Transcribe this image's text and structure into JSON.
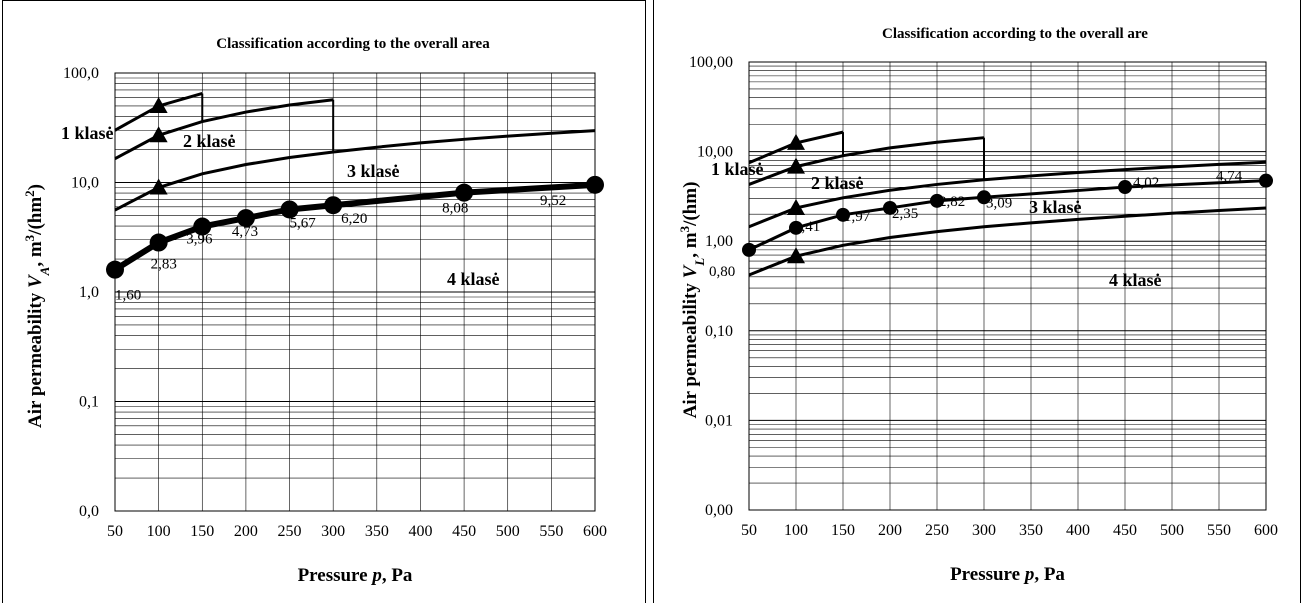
{
  "chart_data": [
    {
      "type": "line",
      "title": "Classification according to the overall area",
      "xlabel": "Pressure p, Pa",
      "xlabel_parts": [
        "Pressure ",
        "p",
        ", Pa"
      ],
      "ylabel": "Air permeability VA, m3/(hm2)",
      "ylabel_parts": {
        "prefix": "Air permeability ",
        "var": "V",
        "sub": "A",
        "mid": ", m",
        "sup1": "3",
        "mid2": "/(hm",
        "sup2": "2",
        "end": ")"
      },
      "y_scale": "log",
      "xlim": [
        50,
        600
      ],
      "ylim": [
        0.01,
        100
      ],
      "x_ticks": [
        50,
        100,
        150,
        200,
        250,
        300,
        350,
        400,
        450,
        500,
        550,
        600
      ],
      "x_tick_labels": [
        "50",
        "100",
        "150",
        "200",
        "250",
        "300",
        "350",
        "400",
        "450",
        "500",
        "550",
        "600"
      ],
      "y_ticks": [
        0.01,
        0.1,
        1,
        10,
        100
      ],
      "y_tick_labels": [
        "0,0",
        "0,1",
        "1,0",
        "10,0",
        "100,0"
      ],
      "grid": true,
      "class_labels": [
        "1 klasė",
        "2 klasė",
        "3 klasė",
        "4 klasė"
      ],
      "class_boundaries": [
        {
          "x": [
            50,
            100,
            150
          ],
          "y": [
            30.0,
            50.0,
            65.0
          ],
          "marker_x": [
            100
          ],
          "drop_at_x": 150
        },
        {
          "x": [
            50,
            100,
            150,
            200,
            250,
            300
          ],
          "y": [
            16.5,
            27.0,
            36.0,
            44.0,
            51.0,
            57.0
          ],
          "marker_x": [
            100
          ],
          "drop_at_x": 300
        },
        {
          "x": [
            50,
            100,
            150,
            200,
            250,
            300,
            350,
            400,
            450,
            500,
            550,
            600
          ],
          "y": [
            5.6,
            9.0,
            12.0,
            14.6,
            16.9,
            19.0,
            21.0,
            23.0,
            24.8,
            26.5,
            28.2,
            29.8
          ],
          "marker_x": [
            100
          ]
        }
      ],
      "series": [
        {
          "x": [
            50,
            100,
            150,
            200,
            250,
            300,
            450,
            600
          ],
          "values": [
            1.6,
            2.83,
            3.96,
            4.73,
            5.67,
            6.2,
            8.08,
            9.52
          ],
          "labels": [
            "1,60",
            "2,83",
            "3,96",
            "4,73",
            "5,67",
            "6,20",
            "8,08",
            "9,52"
          ]
        }
      ]
    },
    {
      "type": "line",
      "title": "Classification according to the overall are",
      "xlabel": "Pressure p, Pa",
      "xlabel_parts": [
        "Pressure ",
        "p",
        ", Pa"
      ],
      "ylabel": "Air permeability VL, m3/(hm)",
      "ylabel_parts": {
        "prefix": "Air permeability ",
        "var": "V",
        "sub": "L",
        "mid": ", m",
        "sup1": "3",
        "mid2": "/(hm)",
        "sup2": "",
        "end": ""
      },
      "y_scale": "log",
      "xlim": [
        50,
        600
      ],
      "ylim": [
        0.001,
        100
      ],
      "x_ticks": [
        50,
        100,
        150,
        200,
        250,
        300,
        350,
        400,
        450,
        500,
        550,
        600
      ],
      "x_tick_labels": [
        "50",
        "100",
        "150",
        "200",
        "250",
        "300",
        "350",
        "400",
        "450",
        "500",
        "550",
        "600"
      ],
      "y_ticks": [
        0.001,
        0.01,
        0.1,
        1,
        10,
        100
      ],
      "y_tick_labels": [
        "0,00",
        "0,01",
        "0,10",
        "1,00",
        "10,00",
        "100,00"
      ],
      "grid": true,
      "class_labels": [
        "1 klasė",
        "2 klasė",
        "3 klasė",
        "4 klasė"
      ],
      "class_boundaries": [
        {
          "x": [
            50,
            100,
            150
          ],
          "y": [
            7.5,
            12.5,
            16.5
          ],
          "marker_x": [
            100
          ],
          "drop_at_x": 150
        },
        {
          "x": [
            50,
            100,
            150,
            200,
            250,
            300
          ],
          "y": [
            4.3,
            6.8,
            9.0,
            11.0,
            12.7,
            14.3
          ],
          "marker_x": [
            100
          ],
          "drop_at_x": 300
        },
        {
          "x": [
            50,
            100,
            150,
            200,
            250,
            300,
            350,
            400,
            450,
            500,
            550,
            600
          ],
          "y": [
            1.45,
            2.35,
            3.05,
            3.7,
            4.3,
            4.85,
            5.35,
            5.85,
            6.3,
            6.75,
            7.2,
            7.6
          ],
          "marker_x": [
            100
          ]
        },
        {
          "x": [
            50,
            100,
            150,
            200,
            250,
            300,
            350,
            400,
            450,
            500,
            550,
            600
          ],
          "y": [
            0.42,
            0.68,
            0.9,
            1.1,
            1.28,
            1.45,
            1.6,
            1.75,
            1.9,
            2.05,
            2.2,
            2.35
          ],
          "marker_x": [
            100
          ]
        }
      ],
      "series": [
        {
          "x": [
            50,
            100,
            150,
            200,
            250,
            300,
            450,
            600
          ],
          "values": [
            0.8,
            1.41,
            1.97,
            2.35,
            2.82,
            3.09,
            4.02,
            4.74
          ],
          "labels": [
            "0,80",
            "1,41",
            "1,97",
            "2,35",
            "2,82",
            "3,09",
            "4,02",
            "4,74"
          ]
        }
      ]
    }
  ]
}
